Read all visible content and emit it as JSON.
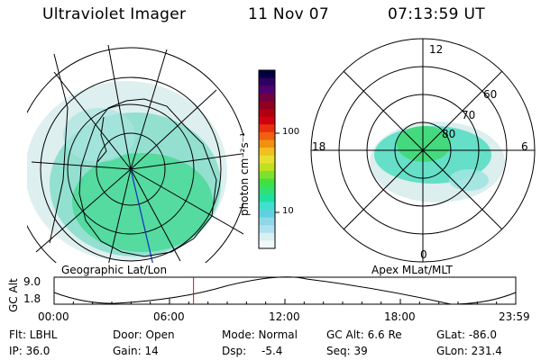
{
  "header": {
    "instrument": "Ultraviolet Imager",
    "date": "11 Nov 07",
    "time": "07:13:59 UT"
  },
  "colorbar": {
    "unit_label": "photon cm⁻²s⁻¹",
    "ticks": [
      "100",
      "10"
    ],
    "colors": [
      "#000040",
      "#300060",
      "#500070",
      "#700040",
      "#900020",
      "#b00010",
      "#d00010",
      "#e83010",
      "#f06010",
      "#f09010",
      "#f0c020",
      "#e8e030",
      "#c0e020",
      "#80e030",
      "#40e040",
      "#30e070",
      "#20e0a0",
      "#40e0d0",
      "#60d0e0",
      "#90d8e8",
      "#b0e0f0",
      "#d8f0f0",
      "#f0f8f8"
    ]
  },
  "left_panel": {
    "label": "Geographic Lat/Lon"
  },
  "right_panel": {
    "label": "Apex MLat/MLT",
    "mlt_labels": {
      "top": "12",
      "left": "18",
      "right": "6",
      "bottom": "0"
    },
    "lat_labels": [
      "60",
      "70",
      "80"
    ]
  },
  "timeline": {
    "ylabel": "GC Alt",
    "ytick_top": "9.0",
    "ytick_bottom": "1.8",
    "xticks": [
      "00:00",
      "06:00",
      "12:00",
      "18:00",
      "23:59"
    ],
    "current_time_fraction": 0.302,
    "marker_color": "#ff0000"
  },
  "info": {
    "flt": "Flt: LBHL",
    "door": "Door: Open",
    "mode": "Mode: Normal",
    "gc_alt": "GC Alt: 6.6 Re",
    "glat": "GLat: -86.0",
    "ip": "IP: 36.0",
    "gain": "Gain: 14",
    "dsp_label": "Dsp:",
    "dsp_value": "-5.4",
    "seq": "Seq: 39",
    "glon": "GLon: 231.4"
  }
}
